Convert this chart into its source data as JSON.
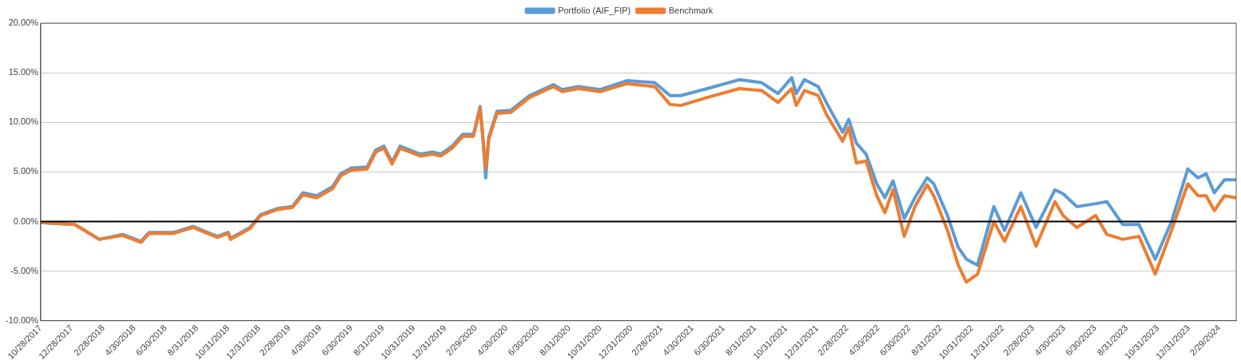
{
  "chart_data": {
    "type": "line",
    "x": [
      "2017-10-28",
      "2018-01-03",
      "2018-02-20",
      "2018-04-07",
      "2018-05-13",
      "2018-05-29",
      "2018-07-16",
      "2018-08-23",
      "2018-10-10",
      "2018-10-31",
      "2018-11-05",
      "2018-12-13",
      "2019-01-03",
      "2019-02-04",
      "2019-03-06",
      "2019-03-27",
      "2019-04-23",
      "2019-05-24",
      "2019-06-09",
      "2019-06-30",
      "2019-07-31",
      "2019-08-17",
      "2019-09-02",
      "2019-09-18",
      "2019-10-04",
      "2019-11-12",
      "2019-12-07",
      "2019-12-23",
      "2020-01-14",
      "2020-02-04",
      "2020-02-25",
      "2020-03-09",
      "2020-03-14",
      "2020-03-20",
      "2020-03-26",
      "2020-04-11",
      "2020-05-08",
      "2020-06-14",
      "2020-07-31",
      "2020-08-17",
      "2020-09-18",
      "2020-10-31",
      "2020-12-22",
      "2021-02-15",
      "2021-03-17",
      "2021-04-07",
      "2021-05-29",
      "2021-07-31",
      "2021-09-13",
      "2021-10-15",
      "2021-11-11",
      "2021-11-20",
      "2021-12-06",
      "2022-01-02",
      "2022-01-18",
      "2022-02-19",
      "2022-03-03",
      "2022-03-18",
      "2022-04-06",
      "2022-04-27",
      "2022-05-13",
      "2022-05-29",
      "2022-06-20",
      "2022-07-11",
      "2022-08-04",
      "2022-08-17",
      "2022-09-13",
      "2022-10-04",
      "2022-10-20",
      "2022-11-11",
      "2022-12-13",
      "2023-01-03",
      "2023-02-04",
      "2023-03-06",
      "2023-04-12",
      "2023-04-28",
      "2023-05-25",
      "2023-07-01",
      "2023-07-23",
      "2023-08-23",
      "2023-09-24",
      "2023-10-26",
      "2023-11-27",
      "2023-12-29",
      "2024-01-18",
      "2024-02-03",
      "2024-02-19",
      "2024-03-10",
      "2024-04-01"
    ],
    "series": [
      {
        "name": "Portfolio (AIF_FIP)",
        "color": "#5b9bd5",
        "values": [
          -0.1,
          -0.3,
          -1.8,
          -1.3,
          -2.0,
          -1.1,
          -1.1,
          -0.5,
          -1.5,
          -1.1,
          -1.7,
          -0.6,
          0.7,
          1.3,
          1.5,
          2.9,
          2.6,
          3.5,
          4.8,
          5.4,
          5.5,
          7.2,
          7.6,
          6.0,
          7.6,
          6.8,
          7.0,
          6.8,
          7.6,
          8.8,
          8.8,
          11.6,
          8.8,
          4.4,
          8.5,
          11.1,
          11.2,
          12.7,
          13.8,
          13.3,
          13.6,
          13.3,
          14.2,
          14.0,
          12.7,
          12.7,
          13.4,
          14.3,
          14.0,
          12.9,
          14.5,
          12.9,
          14.3,
          13.6,
          12.0,
          9.0,
          10.3,
          7.9,
          6.8,
          3.8,
          2.4,
          4.1,
          0.3,
          2.4,
          4.4,
          3.8,
          0.6,
          -2.6,
          -3.8,
          -4.4,
          1.5,
          -0.9,
          2.9,
          -0.6,
          3.2,
          2.8,
          1.5,
          1.8,
          2.0,
          -0.3,
          -0.3,
          -3.8,
          0.0,
          5.3,
          4.4,
          4.8,
          2.9,
          4.2,
          4.2
        ]
      },
      {
        "name": "Benchmark",
        "color": "#ed7d31",
        "values": [
          -0.1,
          -0.3,
          -1.8,
          -1.4,
          -2.1,
          -1.2,
          -1.2,
          -0.6,
          -1.6,
          -1.2,
          -1.8,
          -0.7,
          0.6,
          1.2,
          1.4,
          2.7,
          2.4,
          3.3,
          4.6,
          5.2,
          5.3,
          7.0,
          7.4,
          5.8,
          7.4,
          6.6,
          6.8,
          6.6,
          7.4,
          8.6,
          8.6,
          11.4,
          8.6,
          5.3,
          8.3,
          10.9,
          11.0,
          12.5,
          13.6,
          13.1,
          13.4,
          13.1,
          13.9,
          13.6,
          11.8,
          11.7,
          12.5,
          13.4,
          13.2,
          12.0,
          13.4,
          11.7,
          13.2,
          12.7,
          10.8,
          8.1,
          9.5,
          5.9,
          6.1,
          2.6,
          0.9,
          3.2,
          -1.5,
          1.5,
          3.7,
          2.6,
          -0.9,
          -4.4,
          -6.1,
          -5.3,
          0.0,
          -2.0,
          1.5,
          -2.5,
          2.0,
          0.6,
          -0.6,
          0.6,
          -1.3,
          -1.8,
          -1.5,
          -5.3,
          -0.9,
          3.8,
          2.6,
          2.6,
          1.1,
          2.6,
          2.4
        ]
      }
    ],
    "xlim": [
      "2017-10-28",
      "2024-04-02"
    ],
    "xticks": [
      {
        "value": "2017-10-28",
        "label": "10/28/2017"
      },
      {
        "value": "2017-12-28",
        "label": "12/28/2017"
      },
      {
        "value": "2018-02-28",
        "label": "2/28/2018"
      },
      {
        "value": "2018-04-30",
        "label": "4/30/2018"
      },
      {
        "value": "2018-06-30",
        "label": "6/30/2018"
      },
      {
        "value": "2018-08-31",
        "label": "8/31/2018"
      },
      {
        "value": "2018-10-31",
        "label": "10/31/2018"
      },
      {
        "value": "2018-12-31",
        "label": "12/31/2018"
      },
      {
        "value": "2019-02-28",
        "label": "2/28/2019"
      },
      {
        "value": "2019-04-30",
        "label": "4/30/2019"
      },
      {
        "value": "2019-06-30",
        "label": "6/30/2019"
      },
      {
        "value": "2019-08-31",
        "label": "8/31/2019"
      },
      {
        "value": "2019-10-31",
        "label": "10/31/2019"
      },
      {
        "value": "2019-12-31",
        "label": "12/31/2019"
      },
      {
        "value": "2020-02-29",
        "label": "2/29/2020"
      },
      {
        "value": "2020-04-30",
        "label": "4/30/2020"
      },
      {
        "value": "2020-06-30",
        "label": "6/30/2020"
      },
      {
        "value": "2020-08-31",
        "label": "8/31/2020"
      },
      {
        "value": "2020-10-31",
        "label": "10/31/2020"
      },
      {
        "value": "2020-12-31",
        "label": "12/31/2020"
      },
      {
        "value": "2021-02-28",
        "label": "2/28/2021"
      },
      {
        "value": "2021-04-30",
        "label": "4/30/2021"
      },
      {
        "value": "2021-06-30",
        "label": "6/30/2021"
      },
      {
        "value": "2021-08-31",
        "label": "8/31/2021"
      },
      {
        "value": "2021-10-31",
        "label": "10/31/2021"
      },
      {
        "value": "2021-12-31",
        "label": "12/31/2021"
      },
      {
        "value": "2022-02-28",
        "label": "2/28/2022"
      },
      {
        "value": "2022-04-30",
        "label": "4/30/2022"
      },
      {
        "value": "2022-06-30",
        "label": "6/30/2022"
      },
      {
        "value": "2022-08-31",
        "label": "8/31/2022"
      },
      {
        "value": "2022-10-31",
        "label": "10/31/2022"
      },
      {
        "value": "2022-12-31",
        "label": "12/31/2022"
      },
      {
        "value": "2023-02-28",
        "label": "2/28/2023"
      },
      {
        "value": "2023-04-30",
        "label": "4/30/2023"
      },
      {
        "value": "2023-06-30",
        "label": "6/30/2023"
      },
      {
        "value": "2023-08-31",
        "label": "8/31/2023"
      },
      {
        "value": "2023-10-31",
        "label": "10/31/2023"
      },
      {
        "value": "2023-12-31",
        "label": "12/31/2023"
      },
      {
        "value": "2024-02-29",
        "label": "2/29/2024"
      }
    ],
    "ylim": [
      -10,
      20
    ],
    "yticks": [
      {
        "value": -10,
        "label": "-10.00%"
      },
      {
        "value": -5,
        "label": "-5.00%"
      },
      {
        "value": 0,
        "label": "0.00%"
      },
      {
        "value": 5,
        "label": "5.00%"
      },
      {
        "value": 10,
        "label": "10.00%"
      },
      {
        "value": 15,
        "label": "15.00%"
      },
      {
        "value": 20,
        "label": "20.00%"
      }
    ],
    "ref_lines": [
      {
        "axis": "y",
        "value": 0,
        "color": "#000000"
      }
    ],
    "grid": "y",
    "legend": "top",
    "marker": "none",
    "line_style": "solid"
  }
}
